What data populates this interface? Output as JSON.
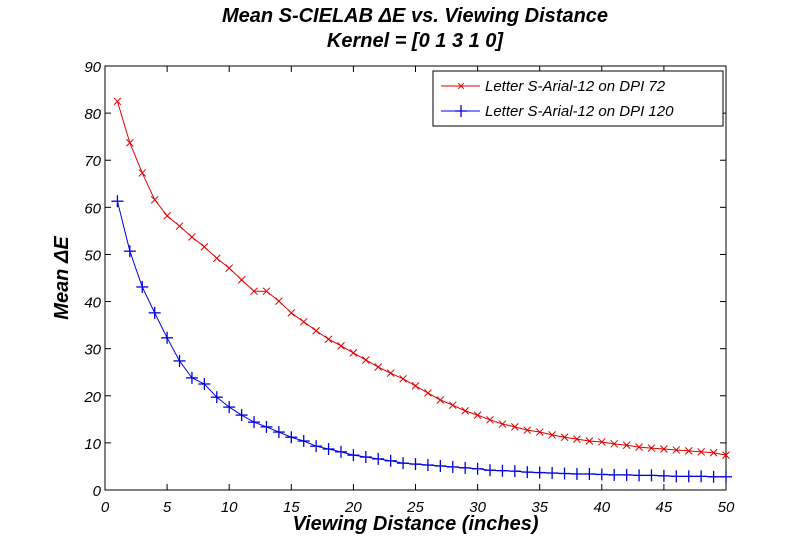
{
  "chart_data": {
    "type": "line",
    "title": "Mean S-CIELAB ΔE vs. Viewing Distance",
    "subtitle": "Kernel = [0 1 3 1 0]",
    "xlabel": "Viewing Distance (inches)",
    "ylabel": "Mean ΔE",
    "xlim": [
      0,
      50
    ],
    "ylim": [
      0,
      90
    ],
    "xticks": [
      0,
      5,
      10,
      15,
      20,
      25,
      30,
      35,
      40,
      45,
      50
    ],
    "yticks": [
      0,
      10,
      20,
      30,
      40,
      50,
      60,
      70,
      80,
      90
    ],
    "xtick_labels": [
      "0",
      "5",
      "10",
      "15",
      "20",
      "25",
      "30",
      "35",
      "40",
      "45",
      "50"
    ],
    "ytick_labels": [
      "0",
      "10",
      "20",
      "30",
      "40",
      "50",
      "60",
      "70",
      "80",
      "90"
    ],
    "grid": false,
    "legend_position": "top-right",
    "x": [
      1,
      2,
      3,
      4,
      5,
      6,
      7,
      8,
      9,
      10,
      11,
      12,
      13,
      14,
      15,
      16,
      17,
      18,
      19,
      20,
      21,
      22,
      23,
      24,
      25,
      26,
      27,
      28,
      29,
      30,
      31,
      32,
      33,
      34,
      35,
      36,
      37,
      38,
      39,
      40,
      41,
      42,
      43,
      44,
      45,
      46,
      47,
      48,
      49,
      50
    ],
    "series": [
      {
        "name": "Letter S-Arial-12 on DPI 72",
        "color": "#e00000",
        "marker": "x",
        "values": [
          82.5,
          73.7,
          67.3,
          61.6,
          58.2,
          56.0,
          53.7,
          51.6,
          49.2,
          47.1,
          44.6,
          42.2,
          42.2,
          40.1,
          37.6,
          35.7,
          33.8,
          32.0,
          30.6,
          29.1,
          27.6,
          26.1,
          24.8,
          23.6,
          22.1,
          20.6,
          19.1,
          18.0,
          16.8,
          15.9,
          14.9,
          14.0,
          13.4,
          12.7,
          12.3,
          11.7,
          11.2,
          10.8,
          10.4,
          10.2,
          9.8,
          9.5,
          9.1,
          8.9,
          8.7,
          8.5,
          8.3,
          8.1,
          7.9,
          7.4
        ]
      },
      {
        "name": "Letter S-Arial-12 on DPI 120",
        "color": "#0000e0",
        "marker": "+",
        "values": [
          61.3,
          50.7,
          43.1,
          37.6,
          32.3,
          27.4,
          23.8,
          22.5,
          19.7,
          17.6,
          15.9,
          14.4,
          13.4,
          12.3,
          11.2,
          10.4,
          9.3,
          8.7,
          8.1,
          7.4,
          7.0,
          6.6,
          6.2,
          5.7,
          5.5,
          5.3,
          5.1,
          4.9,
          4.7,
          4.5,
          4.2,
          4.1,
          4.0,
          3.8,
          3.7,
          3.6,
          3.5,
          3.4,
          3.4,
          3.3,
          3.2,
          3.2,
          3.1,
          3.1,
          3.0,
          2.9,
          2.9,
          2.9,
          2.8,
          2.8
        ]
      }
    ]
  }
}
